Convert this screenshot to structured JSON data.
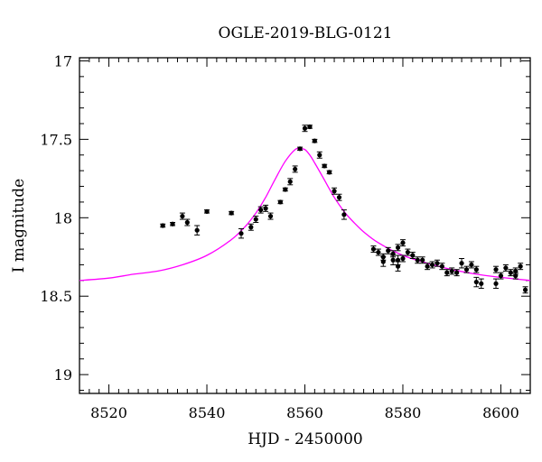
{
  "chart_data": {
    "type": "scatter",
    "title": "OGLE-2019-BLG-0121",
    "xlabel": "HJD - 2450000",
    "ylabel": "I magnitude",
    "xlim": [
      8514,
      8606
    ],
    "ylim": [
      19.12,
      16.98
    ],
    "y_axis_inverted": true,
    "grid": false,
    "x_ticks": [
      8520,
      8540,
      8560,
      8580,
      8600
    ],
    "x_tick_labels": [
      "8520",
      "8540",
      "8560",
      "8580",
      "8600"
    ],
    "y_ticks": [
      17,
      17.5,
      18,
      18.5,
      19
    ],
    "y_tick_labels": [
      "17",
      "17.5",
      "18",
      "18.5",
      "19"
    ],
    "colors": {
      "points": "#000000",
      "model": "#ff00ff",
      "axes": "#000000"
    },
    "series": [
      {
        "type": "scatter",
        "x": [
          8531,
          8533,
          8535,
          8536,
          8538,
          8540,
          8545,
          8547,
          8549,
          8550,
          8551,
          8552,
          8553,
          8555,
          8556,
          8557,
          8558,
          8559,
          8560,
          8561,
          8562,
          8563,
          8564,
          8565,
          8566,
          8567,
          8568,
          8574,
          8575,
          8576,
          8576,
          8577,
          8578,
          8578,
          8579,
          8579,
          8579,
          8580,
          8580,
          8581,
          8582,
          8583,
          8584,
          8585,
          8586,
          8587,
          8588,
          8589,
          8590,
          8591,
          8592,
          8593,
          8594,
          8595,
          8595,
          8596,
          8599,
          8599,
          8600,
          8601,
          8602,
          8603,
          8603,
          8604,
          8605
        ],
        "y": [
          18.05,
          18.04,
          17.99,
          18.03,
          18.08,
          17.96,
          17.97,
          18.1,
          18.06,
          18.01,
          17.95,
          17.94,
          17.99,
          17.9,
          17.82,
          17.77,
          17.69,
          17.56,
          17.43,
          17.42,
          17.51,
          17.6,
          17.67,
          17.71,
          17.83,
          17.87,
          17.98,
          18.2,
          18.22,
          18.25,
          18.28,
          18.21,
          18.27,
          18.23,
          18.19,
          18.31,
          18.27,
          18.16,
          18.26,
          18.22,
          18.24,
          18.27,
          18.27,
          18.31,
          18.3,
          18.29,
          18.31,
          18.35,
          18.34,
          18.35,
          18.29,
          18.33,
          18.3,
          18.41,
          18.33,
          18.42,
          18.33,
          18.42,
          18.37,
          18.32,
          18.35,
          18.34,
          18.37,
          18.31,
          18.46
        ],
        "yerr": [
          0.01,
          0.01,
          0.02,
          0.02,
          0.03,
          0.01,
          0.01,
          0.03,
          0.02,
          0.02,
          0.02,
          0.02,
          0.02,
          0.01,
          0.01,
          0.02,
          0.02,
          0.01,
          0.02,
          0.01,
          0.01,
          0.02,
          0.01,
          0.01,
          0.02,
          0.02,
          0.03,
          0.02,
          0.02,
          0.02,
          0.03,
          0.02,
          0.03,
          0.02,
          0.02,
          0.03,
          0.03,
          0.02,
          0.02,
          0.02,
          0.02,
          0.02,
          0.02,
          0.02,
          0.02,
          0.02,
          0.02,
          0.02,
          0.02,
          0.02,
          0.03,
          0.02,
          0.02,
          0.03,
          0.02,
          0.03,
          0.02,
          0.03,
          0.02,
          0.02,
          0.02,
          0.02,
          0.02,
          0.02,
          0.02
        ]
      },
      {
        "type": "line",
        "x": [
          8514,
          8520,
          8525,
          8530,
          8535,
          8540,
          8545,
          8548,
          8550,
          8552,
          8554,
          8556,
          8558,
          8559,
          8560,
          8561,
          8562,
          8564,
          8566,
          8568,
          8570,
          8572,
          8575,
          8580,
          8585,
          8590,
          8595,
          8600,
          8606
        ],
        "y": [
          18.4,
          18.385,
          18.36,
          18.34,
          18.3,
          18.24,
          18.14,
          18.05,
          17.97,
          17.87,
          17.75,
          17.64,
          17.565,
          17.56,
          17.565,
          17.6,
          17.65,
          17.76,
          17.87,
          17.96,
          18.03,
          18.09,
          18.16,
          18.24,
          18.29,
          18.33,
          18.36,
          18.38,
          18.4
        ]
      }
    ]
  }
}
